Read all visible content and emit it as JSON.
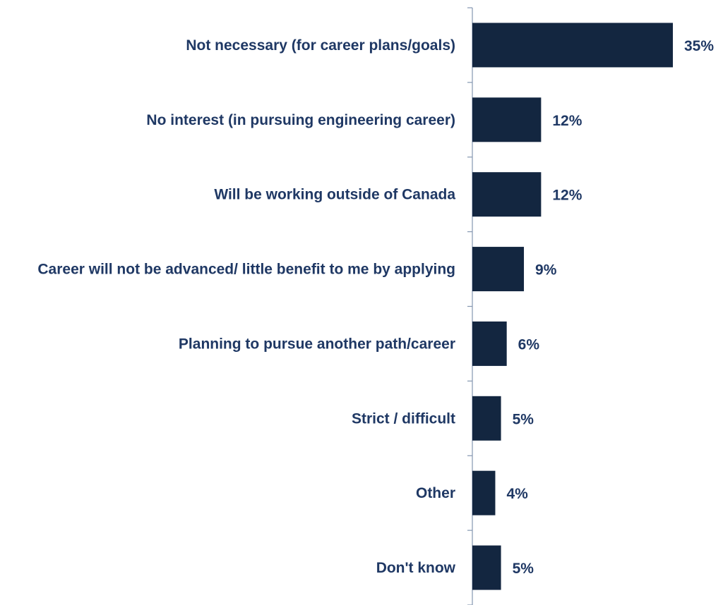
{
  "chart_data": {
    "type": "bar",
    "orientation": "horizontal",
    "title": "",
    "xlabel": "",
    "ylabel": "",
    "categories": [
      "Not necessary (for career plans/goals)",
      "No interest (in pursuing engineering career)",
      "Will be working outside of Canada",
      "Career will not be advanced/ little benefit to me by applying",
      "Planning to pursue another path/career",
      "Strict / difficult",
      "Other",
      "Don't know"
    ],
    "values": [
      35,
      12,
      12,
      9,
      6,
      5,
      4,
      5
    ],
    "value_labels": [
      "35%",
      "12%",
      "12%",
      "9%",
      "6%",
      "5%",
      "4%",
      "5%"
    ],
    "unit": "%",
    "xlim": [
      0,
      35
    ],
    "grid": false,
    "legend": "none",
    "colors": {
      "bar": "#132640",
      "axis": "#8497b0",
      "label": "#1f3864"
    }
  }
}
